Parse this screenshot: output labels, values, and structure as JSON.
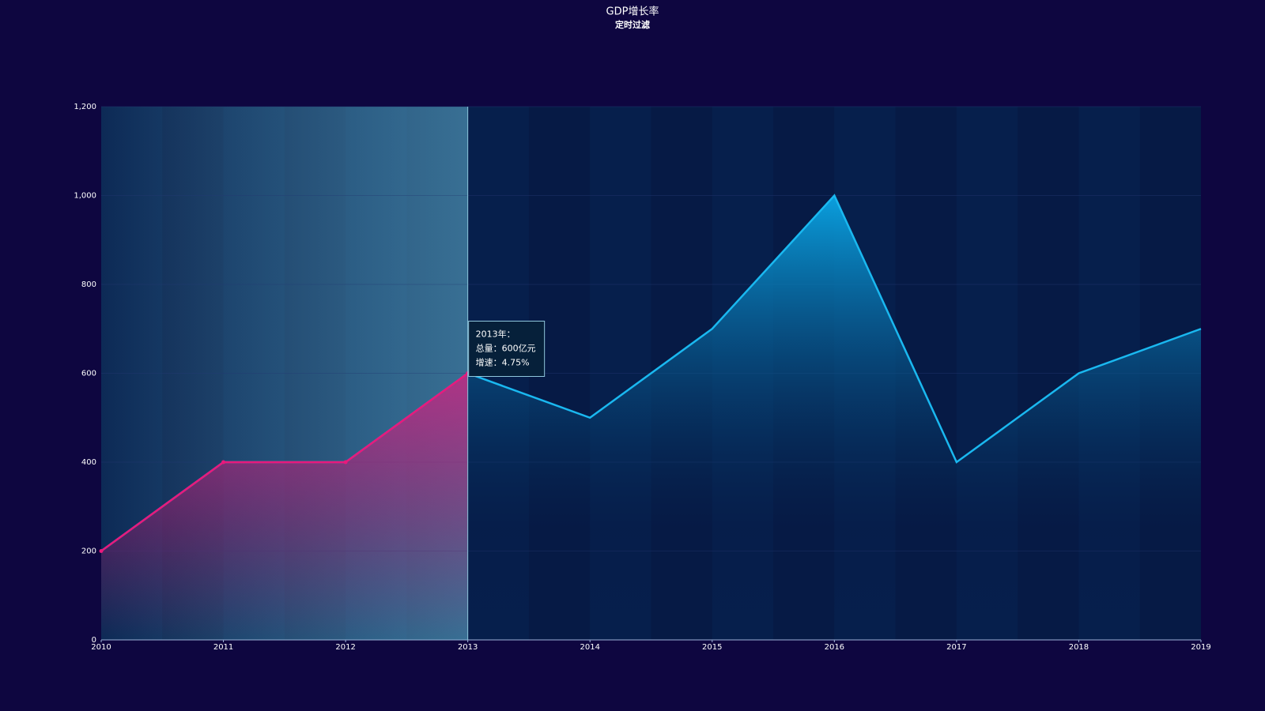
{
  "chart_data": {
    "type": "line",
    "title": "GDP增长率",
    "subtitle": "定时过滤",
    "x": [
      2010,
      2011,
      2012,
      2013,
      2014,
      2015,
      2016,
      2017,
      2018,
      2019
    ],
    "series": [
      {
        "color": "#1ab8f0",
        "values": [
          200,
          400,
          400,
          600,
          500,
          700,
          1000,
          400,
          600,
          700
        ]
      }
    ],
    "xlim": [
      2010,
      2019
    ],
    "xticks": [
      2010,
      2011,
      2012,
      2013,
      2014,
      2015,
      2016,
      2017,
      2018,
      2019
    ],
    "ylim": [
      0,
      1200
    ],
    "yticks": [
      0,
      200,
      400,
      600,
      {
        "value": 1000,
        "label": "1,000"
      },
      {
        "value": 800,
        "label": "800"
      },
      {
        "value": 1200,
        "label": "1,200"
      }
    ],
    "highlight_range": [
      2010,
      2013
    ],
    "highlight_color": "#e8197c",
    "tooltip": {
      "title": "2013年：",
      "lines": [
        "总量：600亿元",
        "增速：4.75%"
      ]
    }
  }
}
